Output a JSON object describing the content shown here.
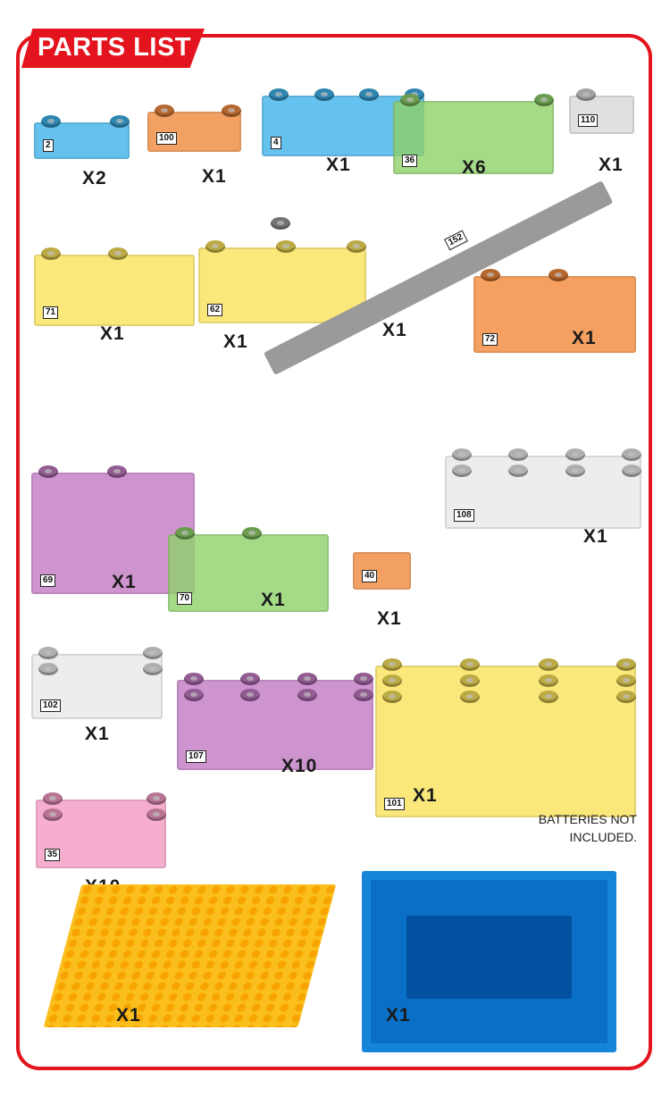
{
  "header": {
    "title": "PARTS LIST",
    "color": "#e3141d"
  },
  "note": {
    "line1": "BATTERIES NOT",
    "line2": "INCLUDED."
  },
  "parts": [
    {
      "number": "2",
      "qty": "X2",
      "color": "#3fb2ea",
      "studs": 2
    },
    {
      "number": "100",
      "qty": "X1",
      "color": "#f08a3c",
      "studs": 2
    },
    {
      "number": "4",
      "qty": "X1",
      "color": "#3fb2ea",
      "studs": 4
    },
    {
      "number": "36",
      "qty": "X6",
      "color": "#8fd16a",
      "studs": 2
    },
    {
      "number": "110",
      "qty": "X1",
      "color": "#d9d9d9",
      "studs": 1
    },
    {
      "number": "71",
      "qty": "X1",
      "color": "#fbe35a",
      "studs": 2
    },
    {
      "number": "62",
      "qty": "X1",
      "color": "#fbe35a",
      "studs": 3
    },
    {
      "number": "152",
      "qty": "X1",
      "color": "#9a9a9a",
      "studs": 1
    },
    {
      "number": "72",
      "qty": "X1",
      "color": "#f3893a",
      "studs": 2
    },
    {
      "number": "69",
      "qty": "X1",
      "color": "#c27ac4",
      "studs": 2
    },
    {
      "number": "70",
      "qty": "X1",
      "color": "#8fd16a",
      "studs": 2
    },
    {
      "number": "40",
      "qty": "X1",
      "color": "#f08a3c",
      "studs": 0
    },
    {
      "number": "108",
      "qty": "X1",
      "color": "#e9e9e9",
      "studs": 8
    },
    {
      "number": "102",
      "qty": "X1",
      "color": "#e9e9e9",
      "studs": 4
    },
    {
      "number": "107",
      "qty": "X10",
      "color": "#c27ac4",
      "studs": 8
    },
    {
      "number": "101",
      "qty": "X1",
      "color": "#fbe35a",
      "studs": 12
    },
    {
      "number": "35",
      "qty": "X10",
      "color": "#f59ac4",
      "studs": 4
    },
    {
      "number": "",
      "qty": "X1",
      "color": "#fbbf1d",
      "studs": 0
    },
    {
      "number": "",
      "qty": "X1",
      "color": "#0a6fc6",
      "studs": 0
    }
  ]
}
